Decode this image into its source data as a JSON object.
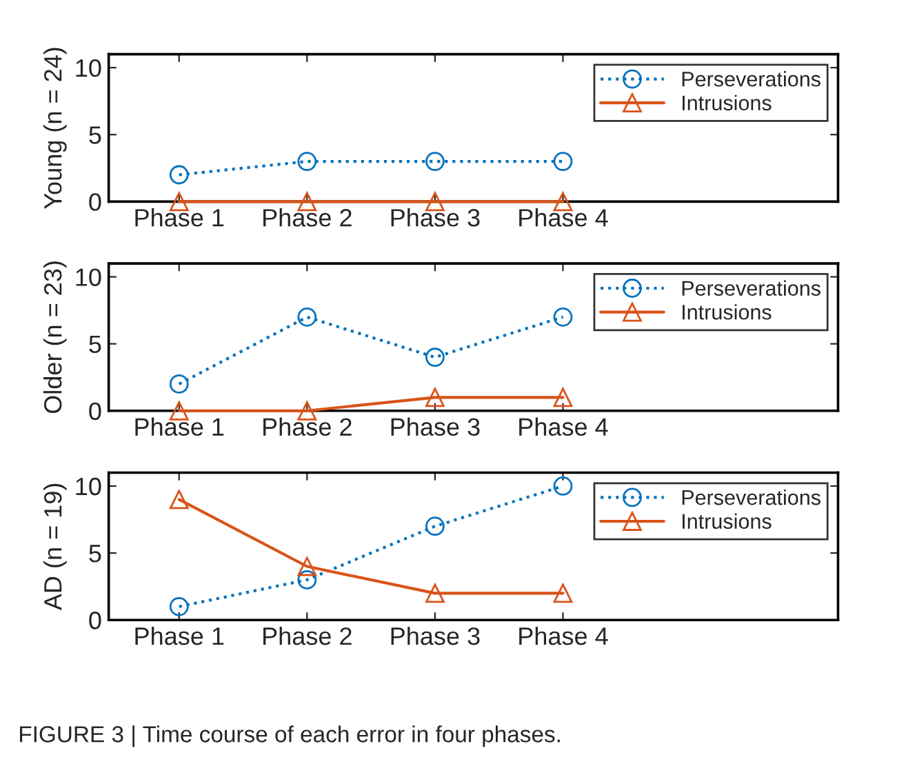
{
  "chart_data": [
    {
      "type": "line",
      "ylabel": "Young (n = 24)",
      "categories": [
        "Phase 1",
        "Phase 2",
        "Phase 3",
        "Phase 4"
      ],
      "ylim": [
        0,
        11
      ],
      "yticks": [
        0,
        5,
        10
      ],
      "grid": false,
      "legend": "top right",
      "series": [
        {
          "name": "Perseverations",
          "color": "#0072bd",
          "values": [
            2,
            3,
            3,
            3
          ],
          "marker": "circle",
          "line_style": "dotted"
        },
        {
          "name": "Intrusions",
          "color": "#d95319",
          "values": [
            0,
            0,
            0,
            0
          ],
          "marker": "triangle",
          "line_style": "solid"
        }
      ]
    },
    {
      "type": "line",
      "ylabel": "Older (n = 23)",
      "categories": [
        "Phase 1",
        "Phase 2",
        "Phase 3",
        "Phase 4"
      ],
      "ylim": [
        0,
        11
      ],
      "yticks": [
        0,
        5,
        10
      ],
      "grid": false,
      "legend": "top right",
      "series": [
        {
          "name": "Perseverations",
          "color": "#0072bd",
          "values": [
            2,
            7,
            4,
            7
          ],
          "marker": "circle",
          "line_style": "dotted"
        },
        {
          "name": "Intrusions",
          "color": "#d95319",
          "values": [
            0,
            0,
            1,
            1
          ],
          "marker": "triangle",
          "line_style": "solid"
        }
      ]
    },
    {
      "type": "line",
      "ylabel": "AD (n = 19)",
      "categories": [
        "Phase 1",
        "Phase 2",
        "Phase 3",
        "Phase 4"
      ],
      "ylim": [
        0,
        11
      ],
      "yticks": [
        0,
        5,
        10
      ],
      "grid": false,
      "legend": "top right",
      "annotations": [
        "FIGURE 3 | Time course of each error in four phases."
      ],
      "series": [
        {
          "name": "Perseverations",
          "color": "#0072bd",
          "values": [
            1,
            3,
            7,
            10
          ],
          "marker": "circle",
          "line_style": "dotted"
        },
        {
          "name": "Intrusions",
          "color": "#d95319",
          "values": [
            9,
            4,
            2,
            2
          ],
          "marker": "triangle",
          "line_style": "solid"
        }
      ]
    }
  ]
}
